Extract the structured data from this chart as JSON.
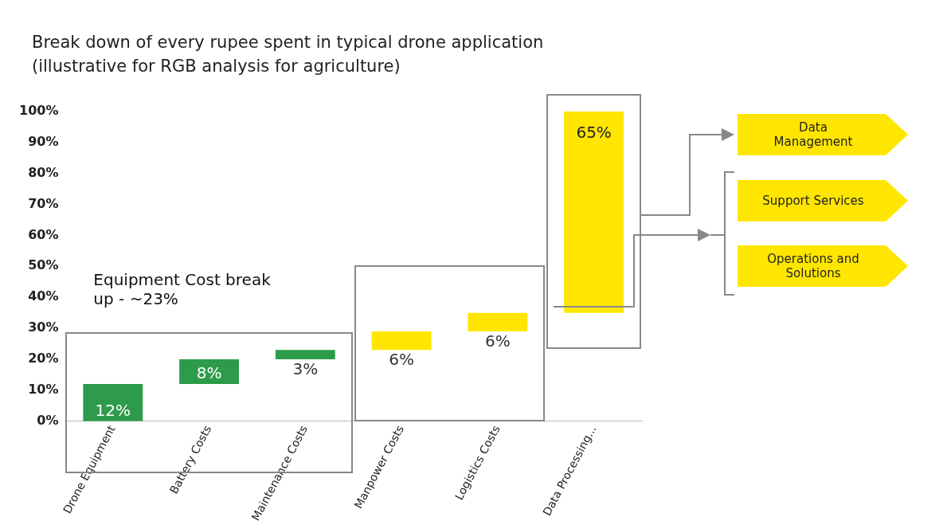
{
  "chart_data": {
    "type": "bar",
    "title": "Break down of every rupee spent in typical drone application",
    "subtitle": "(illustrative for RGB analysis for agriculture)",
    "categories": [
      "Drone Equipment",
      "Battery Costs",
      "Maintenance Costs",
      "Manpower Costs",
      "Logistics Costs",
      "Data Processing..."
    ],
    "values": [
      12,
      8,
      3,
      6,
      6,
      65
    ],
    "base": [
      0,
      12,
      20,
      23,
      29,
      35
    ],
    "colors": [
      "#2e9b4a",
      "#2e9b4a",
      "#2e9b4a",
      "#ffe600",
      "#ffe600",
      "#ffe600"
    ],
    "value_labels": [
      "12%",
      "8%",
      "3%",
      "6%",
      "6%",
      "65%"
    ],
    "ylim": [
      0,
      100
    ],
    "yticks": [
      {
        "value": 0,
        "label": "0%"
      },
      {
        "value": 10,
        "label": "10%"
      },
      {
        "value": 20,
        "label": "20%"
      },
      {
        "value": 30,
        "label": "30%"
      },
      {
        "value": 40,
        "label": "40%"
      },
      {
        "value": 50,
        "label": "50%"
      },
      {
        "value": 60,
        "label": "60%"
      },
      {
        "value": 70,
        "label": "70%"
      },
      {
        "value": 80,
        "label": "80%"
      },
      {
        "value": 90,
        "label": "90%"
      },
      {
        "value": 100,
        "label": "100%"
      }
    ],
    "grid": false,
    "legend": false,
    "annotations": [
      "Equipment Cost break up - ~23%",
      "Data Management",
      "Support Services",
      "Operations and Solutions"
    ]
  }
}
